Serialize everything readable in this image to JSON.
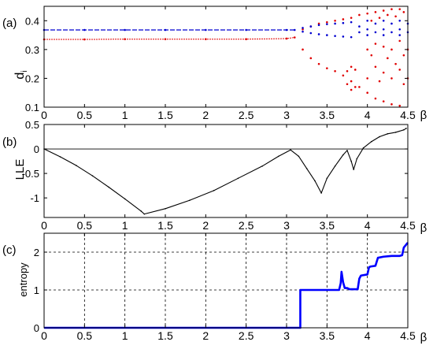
{
  "colors": {
    "axis": "#000000",
    "red": "#e00000",
    "blue": "#0000d0",
    "black": "#000000",
    "entropy": "#0000ff",
    "grid": "#000000"
  },
  "chart_data": [
    {
      "panel_label": "(a)",
      "type": "scatter",
      "title": "",
      "xlabel": "β",
      "ylabel": "d_i",
      "xlim": [
        0,
        4.5
      ],
      "ylim": [
        0.1,
        0.45
      ],
      "xticks": [
        0,
        0.5,
        1,
        1.5,
        2,
        2.5,
        3,
        3.5,
        4,
        4.5
      ],
      "xtick_labels": [
        "0",
        "0.5",
        "1",
        "1.5",
        "2",
        "2.5",
        "3",
        "3.5",
        "4",
        "4.5"
      ],
      "yticks": [
        0.1,
        0.2,
        0.3,
        0.4
      ],
      "ytick_labels": [
        "0.1",
        "0.2",
        "0.3",
        "0.4"
      ],
      "grid": false,
      "series": [
        {
          "color": "red",
          "style": "dense dots",
          "points": [
            [
              0,
              0.335
            ],
            [
              0.5,
              0.335
            ],
            [
              1,
              0.336
            ],
            [
              1.5,
              0.336
            ],
            [
              2,
              0.336
            ],
            [
              2.5,
              0.336
            ],
            [
              3,
              0.338
            ],
            [
              3.1,
              0.342
            ],
            [
              3.2,
              0.3
            ],
            [
              3.3,
              0.27
            ],
            [
              3.4,
              0.25
            ],
            [
              3.5,
              0.235
            ],
            [
              3.6,
              0.225
            ],
            [
              3.7,
              0.21
            ],
            [
              3.8,
              0.19
            ],
            [
              3.9,
              0.17
            ],
            [
              4,
              0.15
            ],
            [
              4.1,
              0.13
            ],
            [
              4.2,
              0.12
            ],
            [
              4.3,
              0.11
            ],
            [
              4.4,
              0.105
            ],
            [
              3.2,
              0.37
            ],
            [
              3.3,
              0.38
            ],
            [
              3.4,
              0.39
            ],
            [
              3.5,
              0.395
            ],
            [
              3.6,
              0.4
            ],
            [
              3.7,
              0.405
            ],
            [
              3.8,
              0.41
            ],
            [
              3.9,
              0.42
            ],
            [
              4,
              0.425
            ],
            [
              4.1,
              0.43
            ],
            [
              4.2,
              0.435
            ],
            [
              4.3,
              0.44
            ],
            [
              4.4,
              0.44
            ],
            [
              3.75,
              0.225
            ],
            [
              3.75,
              0.18
            ],
            [
              3.8,
              0.24
            ],
            [
              3.8,
              0.16
            ],
            [
              3.85,
              0.23
            ],
            [
              3.85,
              0.17
            ],
            [
              4,
              0.3
            ],
            [
              4,
              0.2
            ],
            [
              4.05,
              0.28
            ],
            [
              4.1,
              0.32
            ],
            [
              4.1,
              0.24
            ],
            [
              4.15,
              0.19
            ],
            [
              4.2,
              0.31
            ],
            [
              4.2,
              0.22
            ],
            [
              4.25,
              0.27
            ],
            [
              4.3,
              0.3
            ],
            [
              4.3,
              0.2
            ],
            [
              4.35,
              0.25
            ],
            [
              4.4,
              0.33
            ],
            [
              4.4,
              0.23
            ],
            [
              4.45,
              0.28
            ],
            [
              4.45,
              0.18
            ],
            [
              4.5,
              0.3
            ],
            [
              4.5,
              0.2
            ],
            [
              4.05,
              0.4
            ],
            [
              4.15,
              0.41
            ],
            [
              4.25,
              0.42
            ],
            [
              4.35,
              0.415
            ],
            [
              4.45,
              0.43
            ]
          ]
        },
        {
          "color": "blue",
          "style": "dashed / dense dots",
          "points": [
            [
              0,
              0.368
            ],
            [
              0.5,
              0.368
            ],
            [
              1,
              0.368
            ],
            [
              1.5,
              0.368
            ],
            [
              2,
              0.368
            ],
            [
              2.5,
              0.368
            ],
            [
              3,
              0.368
            ],
            [
              3.1,
              0.368
            ],
            [
              3.2,
              0.375
            ],
            [
              3.3,
              0.38
            ],
            [
              3.4,
              0.385
            ],
            [
              3.5,
              0.388
            ],
            [
              3.6,
              0.39
            ],
            [
              3.7,
              0.392
            ],
            [
              3.8,
              0.395
            ],
            [
              3.2,
              0.362
            ],
            [
              3.3,
              0.357
            ],
            [
              3.4,
              0.353
            ],
            [
              3.5,
              0.35
            ],
            [
              3.6,
              0.347
            ],
            [
              3.7,
              0.345
            ],
            [
              3.8,
              0.343
            ],
            [
              3.9,
              0.38
            ],
            [
              3.9,
              0.36
            ],
            [
              4,
              0.4
            ],
            [
              4,
              0.37
            ],
            [
              4,
              0.35
            ],
            [
              4.1,
              0.39
            ],
            [
              4.1,
              0.36
            ],
            [
              4.2,
              0.4
            ],
            [
              4.2,
              0.37
            ],
            [
              4.2,
              0.35
            ],
            [
              4.3,
              0.39
            ],
            [
              4.3,
              0.36
            ],
            [
              4.4,
              0.4
            ],
            [
              4.4,
              0.37
            ],
            [
              4.4,
              0.35
            ],
            [
              4.5,
              0.39
            ],
            [
              4.5,
              0.36
            ]
          ]
        }
      ]
    },
    {
      "panel_label": "(b)",
      "type": "line",
      "title": "",
      "xlabel": "β",
      "ylabel": "LLE",
      "xlim": [
        0,
        4.5
      ],
      "ylim": [
        -1.4,
        0.5
      ],
      "xticks": [
        0,
        0.5,
        1,
        1.5,
        2,
        2.5,
        3,
        3.5,
        4,
        4.5
      ],
      "xtick_labels": [
        "0",
        "0.5",
        "1",
        "1.5",
        "2",
        "2.5",
        "3",
        "3.5",
        "4",
        "4.5"
      ],
      "yticks": [
        -1,
        -0.5,
        0,
        0.5
      ],
      "ytick_labels": [
        "-1",
        "-0.5",
        "0",
        "0.5"
      ],
      "grid": false,
      "zero_line": true,
      "series": [
        {
          "color": "black",
          "points": [
            [
              0,
              0
            ],
            [
              0.2,
              -0.16
            ],
            [
              0.4,
              -0.34
            ],
            [
              0.6,
              -0.55
            ],
            [
              0.8,
              -0.78
            ],
            [
              1,
              -1.02
            ],
            [
              1.2,
              -1.27
            ],
            [
              1.24,
              -1.33
            ],
            [
              1.5,
              -1.22
            ],
            [
              1.8,
              -1.05
            ],
            [
              2.1,
              -0.85
            ],
            [
              2.4,
              -0.6
            ],
            [
              2.7,
              -0.35
            ],
            [
              2.9,
              -0.15
            ],
            [
              3.05,
              -0.02
            ],
            [
              3.15,
              -0.15
            ],
            [
              3.25,
              -0.4
            ],
            [
              3.35,
              -0.65
            ],
            [
              3.43,
              -0.9
            ],
            [
              3.5,
              -0.6
            ],
            [
              3.6,
              -0.35
            ],
            [
              3.7,
              -0.12
            ],
            [
              3.75,
              -0.03
            ],
            [
              3.8,
              -0.25
            ],
            [
              3.83,
              -0.42
            ],
            [
              3.87,
              -0.2
            ],
            [
              3.95,
              0.02
            ],
            [
              4.05,
              0.15
            ],
            [
              4.15,
              0.25
            ],
            [
              4.25,
              0.31
            ],
            [
              4.35,
              0.34
            ],
            [
              4.45,
              0.39
            ],
            [
              4.48,
              0.42
            ]
          ]
        }
      ]
    },
    {
      "panel_label": "(c)",
      "type": "line",
      "title": "",
      "xlabel": "β",
      "ylabel": "entropy",
      "xlim": [
        0,
        4.5
      ],
      "ylim": [
        0,
        2.5
      ],
      "xticks": [
        0,
        0.5,
        1,
        1.5,
        2,
        2.5,
        3,
        3.5,
        4,
        4.5
      ],
      "xtick_labels": [
        "0",
        "0.5",
        "1",
        "1.5",
        "2",
        "2.5",
        "3",
        "3.5",
        "4",
        "4.5"
      ],
      "yticks": [
        0,
        1,
        2
      ],
      "ytick_labels": [
        "0",
        "1",
        "2"
      ],
      "grid": true,
      "series": [
        {
          "color": "entropy",
          "points": [
            [
              0,
              0
            ],
            [
              3.17,
              0
            ],
            [
              3.17,
              1
            ],
            [
              3.65,
              1
            ],
            [
              3.67,
              1.18
            ],
            [
              3.68,
              1.48
            ],
            [
              3.7,
              1.2
            ],
            [
              3.72,
              1.05
            ],
            [
              3.75,
              1.05
            ],
            [
              3.78,
              1.02
            ],
            [
              3.88,
              1.02
            ],
            [
              3.9,
              1.3
            ],
            [
              3.92,
              1.38
            ],
            [
              4,
              1.41
            ],
            [
              4.02,
              1.6
            ],
            [
              4.04,
              1.62
            ],
            [
              4.1,
              1.64
            ],
            [
              4.13,
              1.85
            ],
            [
              4.2,
              1.88
            ],
            [
              4.3,
              1.9
            ],
            [
              4.4,
              1.9
            ],
            [
              4.43,
              1.92
            ],
            [
              4.45,
              2.12
            ],
            [
              4.48,
              2.2
            ],
            [
              4.5,
              2.25
            ]
          ]
        }
      ]
    }
  ]
}
